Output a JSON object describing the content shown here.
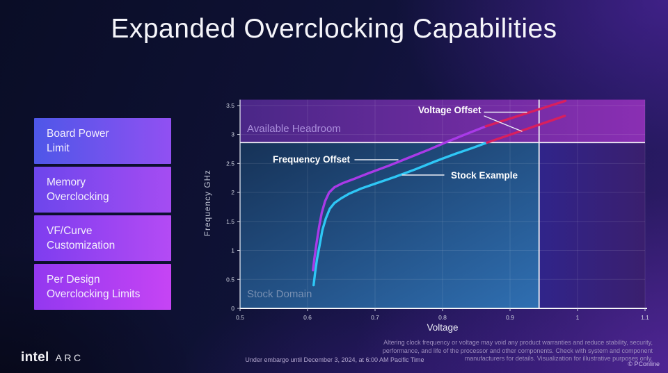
{
  "slide": {
    "title": "Expanded Overclocking Capabilities"
  },
  "sidebar": {
    "items": [
      {
        "line1": "Board Power",
        "line2": "Limit"
      },
      {
        "line1": "Memory",
        "line2": "Overclocking"
      },
      {
        "line1": "VF/Curve",
        "line2": "Customization"
      },
      {
        "line1": "Per Design",
        "line2": "Overclocking Limits"
      }
    ]
  },
  "chart_data": {
    "type": "line",
    "title": "",
    "xlabel": "Voltage",
    "ylabel": "Frequency GHz",
    "xlim": [
      0.5,
      1.1
    ],
    "ylim": [
      0,
      3.6
    ],
    "x_ticks": [
      0.5,
      0.6,
      0.7,
      0.8,
      0.9,
      1,
      1.1
    ],
    "y_ticks": [
      0,
      0.5,
      1,
      1.5,
      2,
      2.5,
      3,
      3.5
    ],
    "grid": true,
    "legend_position": "none",
    "frequency_limit_ghz": 2.86,
    "voltage_limit_v": 0.943,
    "regions": [
      {
        "name": "Available Headroom",
        "y_from": 2.86,
        "y_to": 3.6,
        "color_left": "#4a2787",
        "color_right": "#8a2fb3"
      },
      {
        "name": "Stock Domain",
        "x_from": 0.5,
        "x_to": 0.943,
        "y_from": 0,
        "y_to": 2.86,
        "color_topleft": "#163257",
        "color_bottomright": "#2f6fb2"
      },
      {
        "name": "beyond-voltage-limit",
        "x_from": 0.943,
        "x_to": 1.1,
        "y_from": 0,
        "y_to": 2.86,
        "color_left": "#30248a",
        "color_right": "#3a1f6e"
      }
    ],
    "threshold_color": "#f2f2f6",
    "series": [
      {
        "name": "Stock Example",
        "color": "#2ec7f6",
        "points": [
          [
            0.609,
            0.4
          ],
          [
            0.611,
            0.6
          ],
          [
            0.614,
            0.85
          ],
          [
            0.618,
            1.1
          ],
          [
            0.622,
            1.35
          ],
          [
            0.627,
            1.55
          ],
          [
            0.633,
            1.72
          ],
          [
            0.64,
            1.82
          ],
          [
            0.65,
            1.9
          ],
          [
            0.662,
            1.98
          ],
          [
            0.68,
            2.07
          ],
          [
            0.7,
            2.15
          ],
          [
            0.73,
            2.27
          ],
          [
            0.76,
            2.4
          ],
          [
            0.79,
            2.54
          ],
          [
            0.82,
            2.67
          ],
          [
            0.845,
            2.77
          ],
          [
            0.866,
            2.86
          ]
        ]
      },
      {
        "name": "Frequency Offset",
        "color": "#a93ae8",
        "points": [
          [
            0.608,
            0.66
          ],
          [
            0.61,
            0.85
          ],
          [
            0.613,
            1.1
          ],
          [
            0.617,
            1.4
          ],
          [
            0.621,
            1.65
          ],
          [
            0.626,
            1.85
          ],
          [
            0.632,
            2.0
          ],
          [
            0.64,
            2.09
          ],
          [
            0.652,
            2.16
          ],
          [
            0.668,
            2.23
          ],
          [
            0.69,
            2.33
          ],
          [
            0.72,
            2.46
          ],
          [
            0.75,
            2.6
          ],
          [
            0.78,
            2.74
          ],
          [
            0.81,
            2.89
          ],
          [
            0.84,
            3.03
          ],
          [
            0.864,
            3.14
          ]
        ]
      },
      {
        "name": "Voltage Offset extension upper",
        "color": "#d81f5e",
        "points": [
          [
            0.864,
            3.14
          ],
          [
            0.982,
            3.58
          ]
        ]
      },
      {
        "name": "Voltage Offset extension lower",
        "color": "#d81f5e",
        "points": [
          [
            0.866,
            2.86
          ],
          [
            0.981,
            3.32
          ]
        ]
      }
    ]
  },
  "chart_labels": {
    "available_headroom": "Available Headroom",
    "stock_domain": "Stock Domain",
    "frequency_offset": "Frequency Offset",
    "stock_example": "Stock Example",
    "voltage_offset": "Voltage Offset",
    "xlabel": "Voltage",
    "ylabel": "Frequency GHz"
  },
  "footer": {
    "brand_intel": "intel",
    "brand_arc": "ARC",
    "embargo": "Under embargo until December 3, 2024, at 6:00 AM Pacific Time",
    "disclaimer_line1": "Altering clock frequency or voltage may void any product warranties and reduce stability, security,",
    "disclaimer_line2": "performance, and life of the processor and other components.  Check with system and component",
    "disclaimer_line3": "manufacturers for details. Visualization for illustrative purposes only.",
    "watermark_symbol": "©",
    "watermark": "PConline"
  }
}
